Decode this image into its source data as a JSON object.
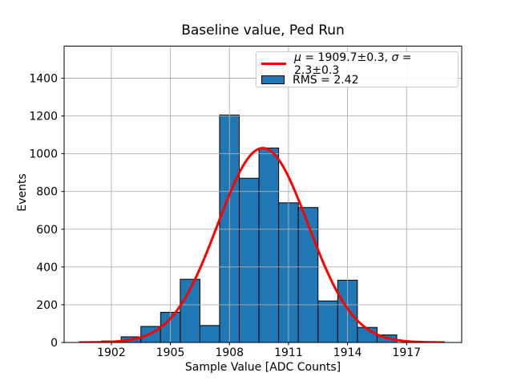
{
  "chart_data": {
    "type": "bar",
    "subtype": "histogram-with-gaussian-fit",
    "title": "Baseline value, Ped Run",
    "xlabel": "Sample Value [ADC Counts]",
    "ylabel": "Events",
    "bin_centers": [
      1901,
      1902,
      1903,
      1904,
      1905,
      1906,
      1907,
      1908,
      1909,
      1910,
      1911,
      1912,
      1913,
      1914,
      1915,
      1916
    ],
    "bin_width": 1,
    "counts": [
      3,
      8,
      30,
      85,
      160,
      335,
      90,
      1205,
      870,
      1030,
      740,
      715,
      220,
      330,
      80,
      40
    ],
    "xticks": [
      1902,
      1905,
      1908,
      1911,
      1914,
      1917
    ],
    "yticks": [
      0,
      200,
      400,
      600,
      800,
      1000,
      1200,
      1400
    ],
    "xlim": [
      1899.6,
      1919.8
    ],
    "ylim": [
      0,
      1570
    ],
    "grid": true,
    "legend_position": "upper right",
    "fit": {
      "mu": 1909.7,
      "sigma": 2.3,
      "amplitude": 1030,
      "x_start": 1900.4,
      "x_end": 1918.9
    },
    "colors": {
      "hist_fill": "#1f77b4",
      "hist_edge": "#000000",
      "fit_line": "#ff0000",
      "grid": "#b0b0b0",
      "axes": "#000000",
      "legend_border": "#cccccc"
    },
    "legend": {
      "fit_label_parts": [
        {
          "text": "μ",
          "italic": true
        },
        {
          "text": " = 1909.7±0.3, ",
          "italic": false
        },
        {
          "text": "σ",
          "italic": true
        },
        {
          "text": " = 2.3±0.3",
          "italic": false
        }
      ],
      "fit_label_plain": "μ = 1909.7±0.3, σ = 2.3±0.3",
      "rms_label": "RMS = 2.42"
    }
  }
}
